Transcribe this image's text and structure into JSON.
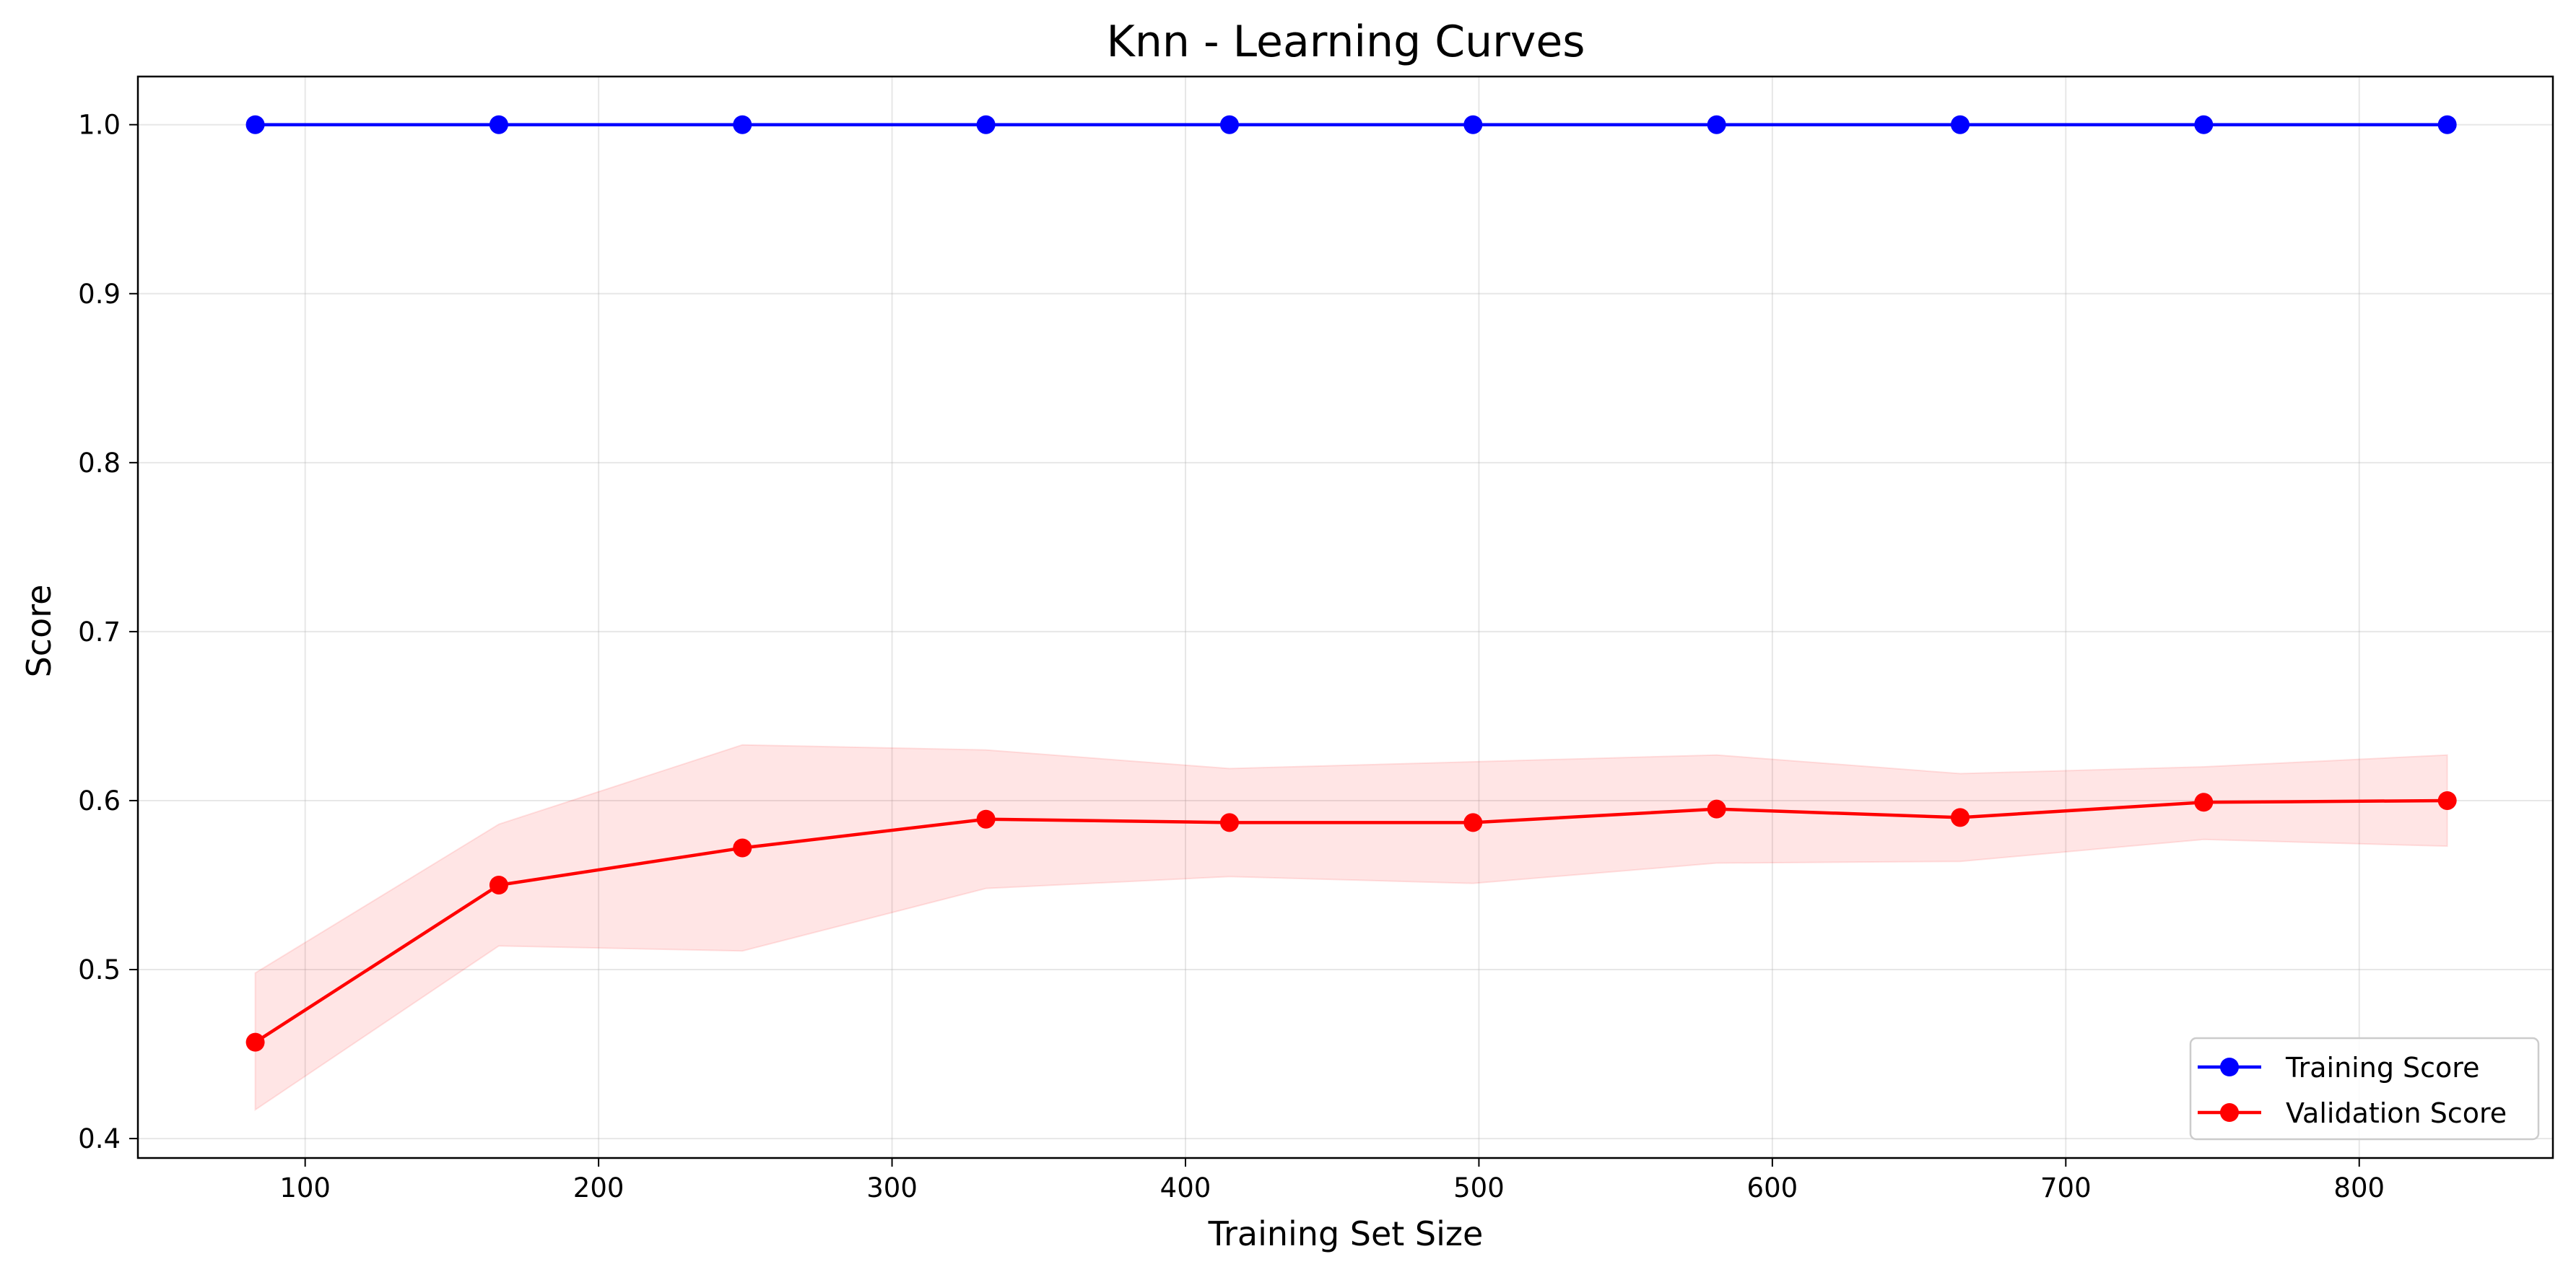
{
  "chart_data": {
    "type": "line",
    "title": "Knn - Learning Curves",
    "xlabel": "Training Set Size",
    "ylabel": "Score",
    "x": [
      83,
      166,
      249,
      332,
      415,
      498,
      581,
      664,
      747,
      830
    ],
    "xlim": [
      43,
      866
    ],
    "ylim": [
      0.3885,
      1.0285
    ],
    "xticks": [
      100,
      200,
      300,
      400,
      500,
      600,
      700,
      800
    ],
    "xtick_labels": [
      "100",
      "200",
      "300",
      "400",
      "500",
      "600",
      "700",
      "800"
    ],
    "yticks": [
      0.4,
      0.5,
      0.6,
      0.7,
      0.8,
      0.9,
      1.0
    ],
    "ytick_labels": [
      "0.4",
      "0.5",
      "0.6",
      "0.7",
      "0.8",
      "0.9",
      "1.0"
    ],
    "grid": true,
    "legend_position": "bottom-right",
    "series": [
      {
        "name": "Training Score",
        "color": "#0000ff",
        "values": [
          1.0,
          1.0,
          1.0,
          1.0,
          1.0,
          1.0,
          1.0,
          1.0,
          1.0,
          1.0
        ],
        "band_lower": [
          1.0,
          1.0,
          1.0,
          1.0,
          1.0,
          1.0,
          1.0,
          1.0,
          1.0,
          1.0
        ],
        "band_upper": [
          1.0,
          1.0,
          1.0,
          1.0,
          1.0,
          1.0,
          1.0,
          1.0,
          1.0,
          1.0
        ]
      },
      {
        "name": "Validation Score",
        "color": "#ff0000",
        "values": [
          0.457,
          0.55,
          0.572,
          0.589,
          0.587,
          0.587,
          0.595,
          0.59,
          0.599,
          0.6
        ],
        "band_lower": [
          0.417,
          0.514,
          0.511,
          0.548,
          0.555,
          0.551,
          0.563,
          0.564,
          0.577,
          0.573
        ],
        "band_upper": [
          0.498,
          0.586,
          0.633,
          0.63,
          0.619,
          0.623,
          0.627,
          0.616,
          0.62,
          0.627
        ]
      }
    ]
  }
}
